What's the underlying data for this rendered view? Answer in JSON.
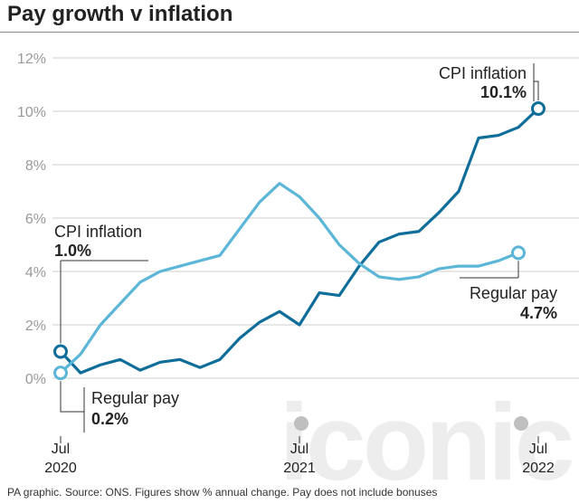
{
  "title": "Pay growth v inflation",
  "footer": "PA graphic. Source: ONS. Figures show % annual change. Pay does not include bonuses",
  "watermark": "iconic",
  "colors": {
    "cpi": "#0f6d9a",
    "pay": "#5bb6d8",
    "grid": "#cfcfcf",
    "annotation_line": "#333333"
  },
  "chart_data": {
    "type": "line",
    "title": "Pay growth v inflation",
    "x": [
      "2020-07",
      "2020-08",
      "2020-09",
      "2020-10",
      "2020-11",
      "2020-12",
      "2021-01",
      "2021-02",
      "2021-03",
      "2021-04",
      "2021-05",
      "2021-06",
      "2021-07",
      "2021-08",
      "2021-09",
      "2021-10",
      "2021-11",
      "2021-12",
      "2022-01",
      "2022-02",
      "2022-03",
      "2022-04",
      "2022-05",
      "2022-06",
      "2022-07"
    ],
    "x_tick_labels": [
      {
        "month": "Jul",
        "year": "2020",
        "x": "2020-07"
      },
      {
        "month": "Jul",
        "year": "2021",
        "x": "2021-07"
      },
      {
        "month": "Jul",
        "year": "2022",
        "x": "2022-07"
      }
    ],
    "y_ticks": [
      {
        "value": 0,
        "label": "0%"
      },
      {
        "value": 2,
        "label": "2%"
      },
      {
        "value": 4,
        "label": "4%"
      },
      {
        "value": 6,
        "label": "6%"
      },
      {
        "value": 8,
        "label": "8%"
      },
      {
        "value": 10,
        "label": "10%"
      },
      {
        "value": 12,
        "label": "12%"
      }
    ],
    "ylim": [
      0,
      12
    ],
    "grid": true,
    "series": [
      {
        "key": "cpi",
        "values": [
          1.0,
          0.2,
          0.5,
          0.7,
          0.3,
          0.6,
          0.7,
          0.4,
          0.7,
          1.5,
          2.1,
          2.5,
          2.0,
          3.2,
          3.1,
          4.2,
          5.1,
          5.4,
          5.5,
          6.2,
          7.0,
          9.0,
          9.1,
          9.4,
          10.1
        ]
      },
      {
        "key": "pay",
        "values": [
          0.2,
          0.9,
          2.0,
          2.8,
          3.6,
          4.0,
          4.2,
          4.4,
          4.6,
          5.6,
          6.6,
          7.3,
          6.8,
          6.0,
          5.0,
          4.3,
          3.8,
          3.7,
          3.8,
          4.1,
          4.2,
          4.2,
          4.4,
          4.7,
          null
        ]
      }
    ],
    "annotations": {
      "cpi_start": {
        "label": "CPI inflation",
        "value": "1.0%"
      },
      "cpi_end": {
        "label": "CPI inflation",
        "value": "10.1%"
      },
      "pay_start": {
        "label": "Regular pay",
        "value": "0.2%"
      },
      "pay_end": {
        "label": "Regular pay",
        "value": "4.7%"
      }
    }
  }
}
